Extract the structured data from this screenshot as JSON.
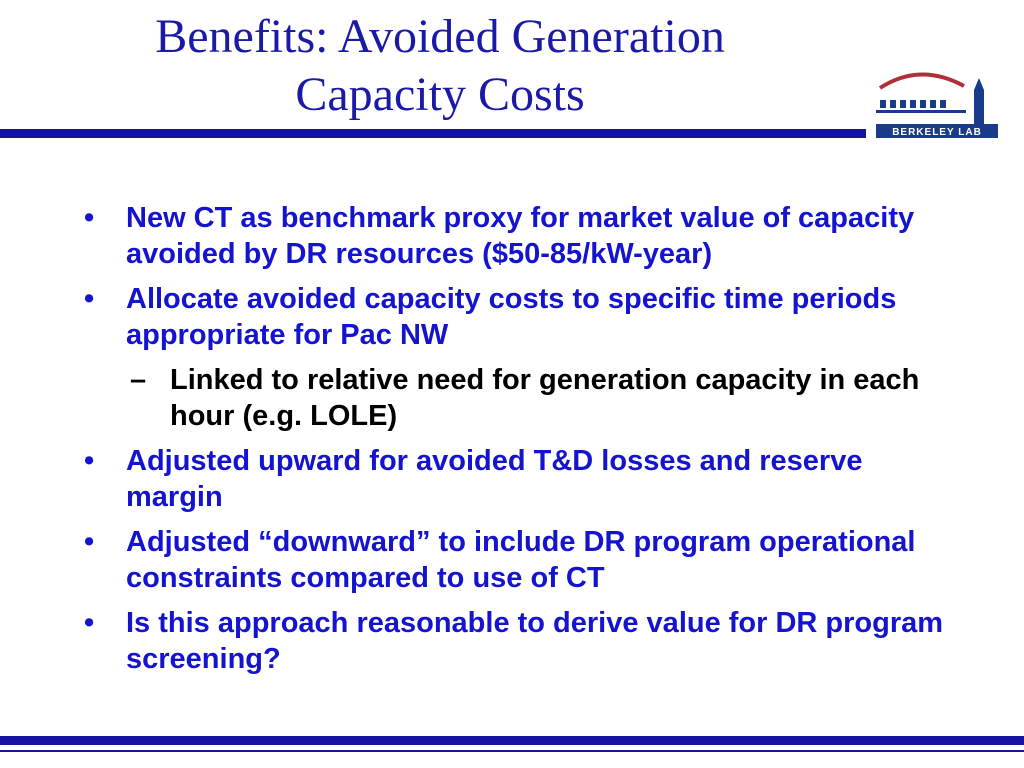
{
  "title": {
    "line1": "Benefits: Avoided Generation",
    "line2": "Capacity Costs"
  },
  "logo": {
    "text": "BERKELEY LAB",
    "icon": "berkeley-lab-logo",
    "colors": {
      "arc": "#b03038",
      "building": "#1a3a8a",
      "bar": "#1a3a8a"
    }
  },
  "bullet_marker": "•",
  "sub_marker": "–",
  "items": [
    {
      "level": 1,
      "text": "New CT as benchmark proxy for market value of capacity avoided by DR resources ($50-85/kW-year)"
    },
    {
      "level": 1,
      "text": "Allocate avoided capacity costs to specific time periods appropriate for Pac NW"
    },
    {
      "level": 2,
      "text": "Linked to relative need for generation capacity in each hour (e.g. LOLE)"
    },
    {
      "level": 1,
      "text": "Adjusted upward for avoided T&D losses and reserve margin"
    },
    {
      "level": 1,
      "text": "Adjusted “downward” to include DR program operational constraints compared to use of CT"
    },
    {
      "level": 1,
      "text": "Is this approach reasonable to derive value for DR program screening?"
    }
  ],
  "colors": {
    "title": "#1a1aa6",
    "bullet_text": "#1414d0",
    "sub_text": "#000000",
    "rule": "#1414a0"
  }
}
